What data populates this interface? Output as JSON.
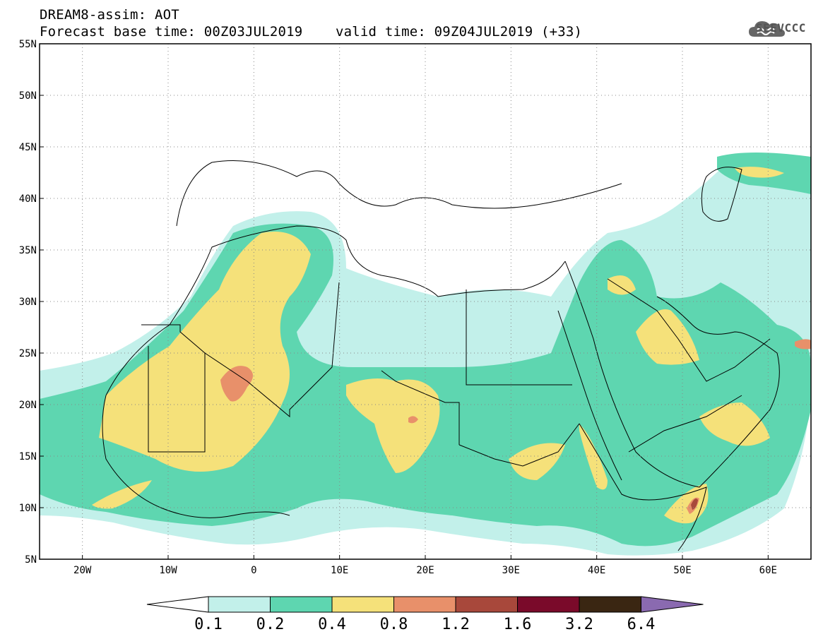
{
  "header": {
    "line1": "DREAM8-assim: AOT",
    "line2": "Forecast base time: 00Z03JUL2019    valid time: 09Z04JUL2019 (+33)"
  },
  "logo": {
    "text": "SEEVCCC",
    "icon": "cloud-icon"
  },
  "map": {
    "lon_range": [
      -25,
      65
    ],
    "lat_range": [
      5,
      55
    ],
    "lat_labels": [
      "5N",
      "10N",
      "15N",
      "20N",
      "25N",
      "30N",
      "35N",
      "40N",
      "45N",
      "50N",
      "55N"
    ],
    "lat_values": [
      5,
      10,
      15,
      20,
      25,
      30,
      35,
      40,
      45,
      50,
      55
    ],
    "lon_labels": [
      "20W",
      "10W",
      "0",
      "10E",
      "20E",
      "30E",
      "40E",
      "50E",
      "60E"
    ],
    "lon_values": [
      -20,
      -10,
      0,
      10,
      20,
      30,
      40,
      50,
      60
    ],
    "grid": "dotted",
    "field": "AOT"
  },
  "legend": {
    "labels": [
      "0.1",
      "0.2",
      "0.4",
      "0.8",
      "1.2",
      "1.6",
      "3.2",
      "6.4"
    ],
    "colors": [
      "#c2f0ea",
      "#5ed6b0",
      "#f5e17a",
      "#e8906a",
      "#a8483b",
      "#7a0a2a",
      "#3a2612",
      "#8a6ab0"
    ],
    "left_arrow_color": "#ffffff"
  }
}
